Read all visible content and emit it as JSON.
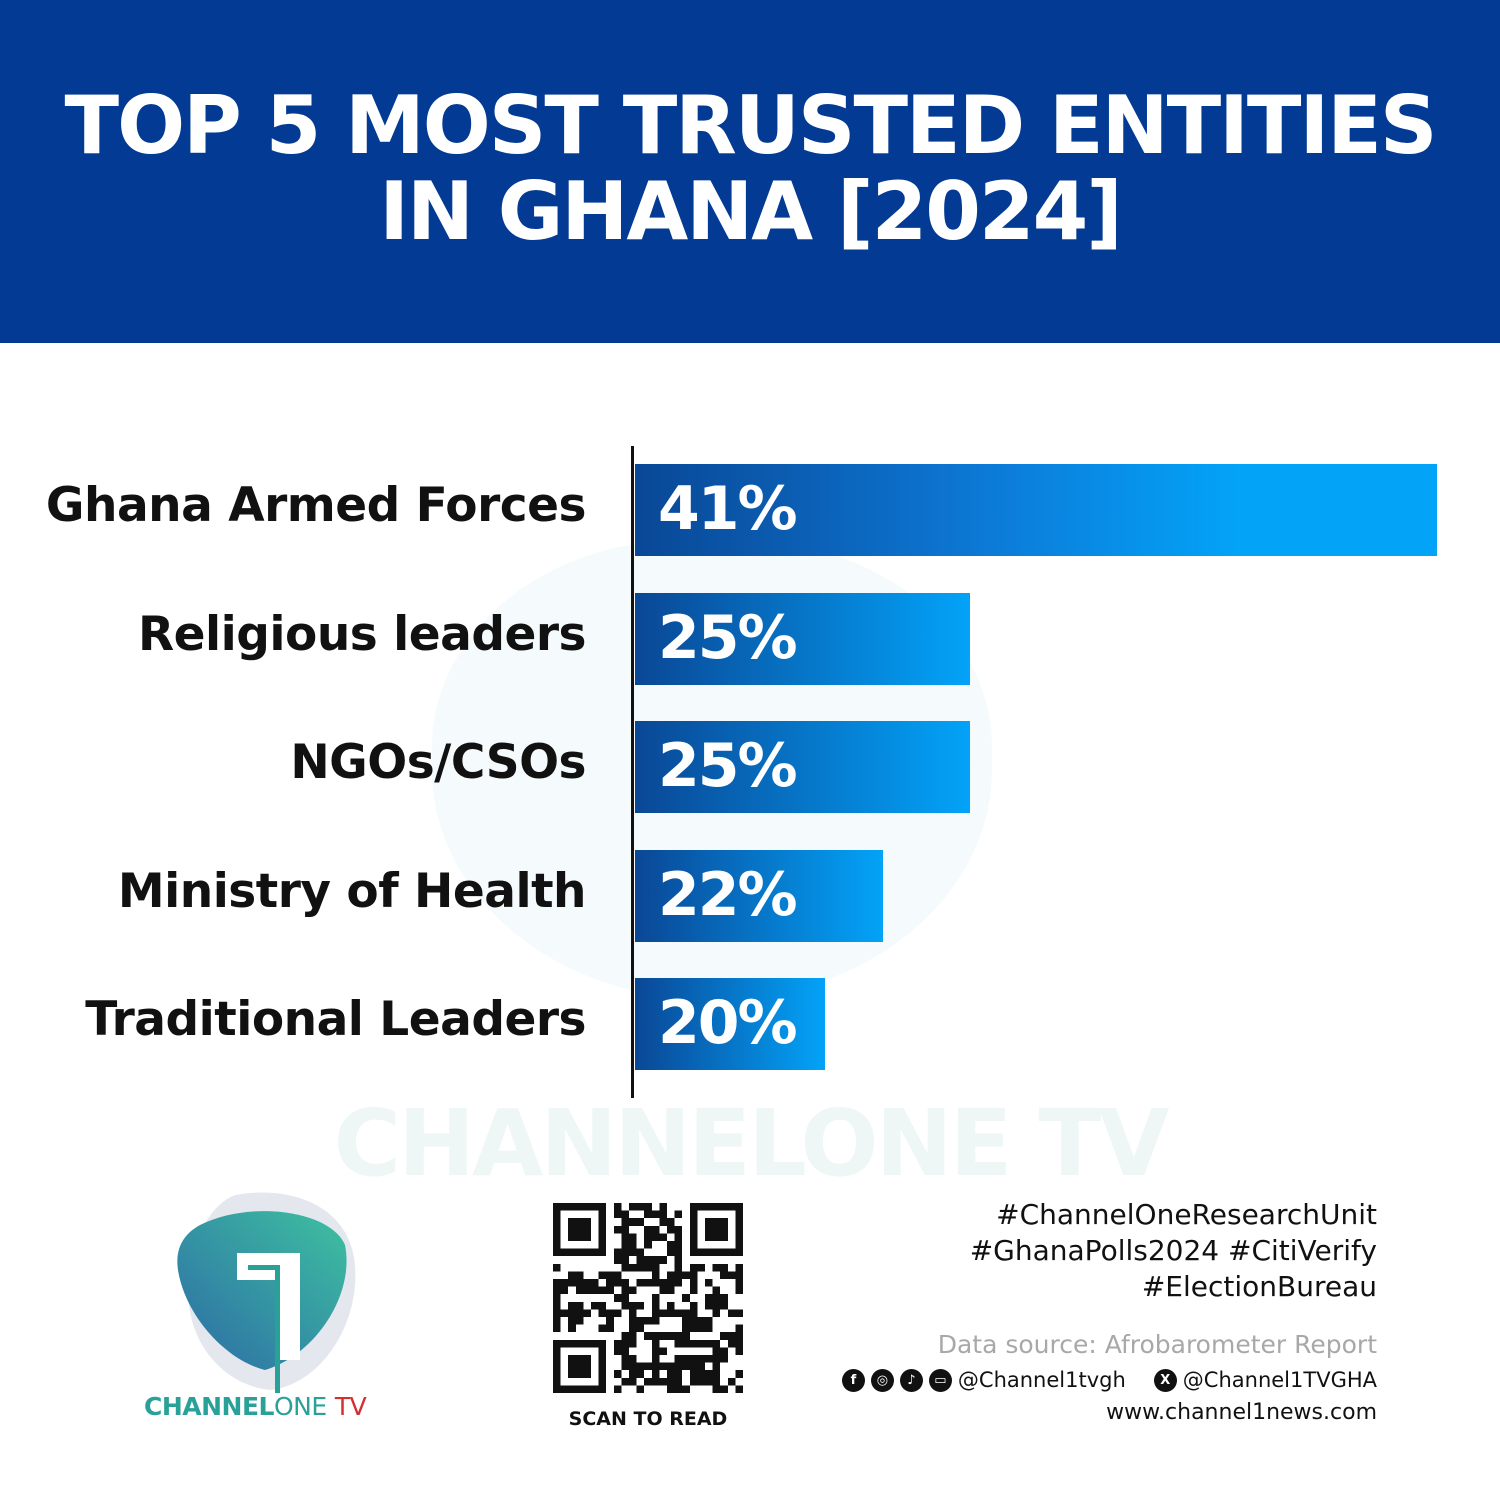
{
  "header": {
    "title_line1": "TOP 5 MOST TRUSTED ENTITIES",
    "title_line2": "IN GHANA [2024]",
    "background": "#033a94"
  },
  "chart_data": {
    "type": "bar",
    "orientation": "horizontal",
    "categories": [
      "Ghana Armed Forces",
      "Religious leaders",
      "NGOs/CSOs",
      "Ministry of Health",
      "Traditional Leaders"
    ],
    "values": [
      41,
      25,
      25,
      22,
      20
    ],
    "value_labels": [
      "41%",
      "25%",
      "25%",
      "22%",
      "20%"
    ],
    "unit": "%",
    "xlim": [
      13.5,
      41
    ],
    "grid": false,
    "bar_gradient": [
      "#0a4796",
      "#03a3f8"
    ]
  },
  "watermark": "CHANNELONE TV",
  "brand": {
    "name_bold": "CHANNEL",
    "name_light": "ONE",
    "name_tv": "TV",
    "colors": {
      "teal": "#2aa198",
      "red": "#d32f2f"
    }
  },
  "qr": {
    "caption": "SCAN TO READ"
  },
  "footer": {
    "hashtags": [
      "#ChannelOneResearchUnit",
      "#GhanaPolls2024 #CitiVerify",
      "#ElectionBureau"
    ],
    "source": "Data source: Afrobarometer Report",
    "social_icons": [
      "facebook-icon",
      "instagram-icon",
      "tiktok-icon",
      "youtube-icon"
    ],
    "handle_main": "@Channel1tvgh",
    "handle_x": "@Channel1TVGHA",
    "website": "www.channel1news.com"
  }
}
